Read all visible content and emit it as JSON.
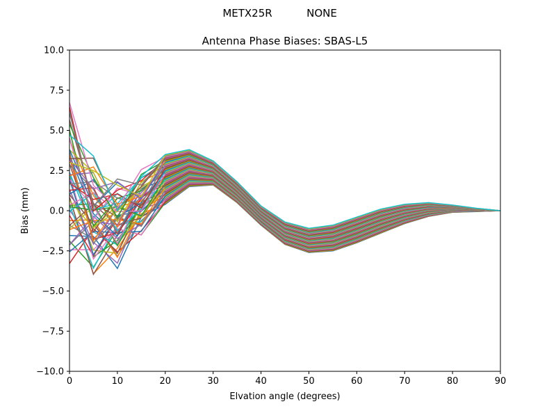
{
  "figure": {
    "suptitle_left": "METX25R",
    "suptitle_right": "NONE"
  },
  "chart_data": {
    "type": "line",
    "title": "Antenna Phase Biases: SBAS-L5",
    "xlabel": "Elvation angle (degrees)",
    "ylabel": "Bias (mm)",
    "xlim": [
      0,
      90
    ],
    "ylim": [
      -10,
      10
    ],
    "xticks": [
      0,
      10,
      20,
      30,
      40,
      50,
      60,
      70,
      80,
      90
    ],
    "yticks": [
      -10.0,
      -7.5,
      -5.0,
      -2.5,
      0.0,
      2.5,
      5.0,
      7.5,
      10.0
    ],
    "ytick_labels": [
      "−10.0",
      "−7.5",
      "−5.0",
      "−2.5",
      "0.0",
      "2.5",
      "5.0",
      "7.5",
      "10.0"
    ],
    "grid": false,
    "legend": false,
    "x": [
      0,
      5,
      10,
      15,
      20,
      25,
      30,
      35,
      40,
      45,
      50,
      55,
      60,
      65,
      70,
      75,
      80,
      85,
      90
    ],
    "envelope_upper": [
      7.5,
      3.6,
      2.3,
      2.7,
      3.5,
      3.8,
      3.1,
      1.8,
      0.3,
      -0.7,
      -1.1,
      -0.9,
      -0.4,
      0.1,
      0.4,
      0.5,
      0.35,
      0.15,
      0.0
    ],
    "envelope_lower": [
      -3.8,
      -4.4,
      -3.6,
      -1.8,
      0.4,
      1.5,
      1.6,
      0.5,
      -0.9,
      -2.1,
      -2.6,
      -2.5,
      -2.0,
      -1.4,
      -0.8,
      -0.35,
      -0.1,
      -0.05,
      0.0
    ],
    "series_count": 60,
    "colors": [
      "#1f77b4",
      "#ff7f0e",
      "#2ca02c",
      "#d62728",
      "#9467bd",
      "#8c564b",
      "#e377c2",
      "#7f7f7f",
      "#bcbd22",
      "#17becf"
    ],
    "axis_color": "#000000"
  }
}
